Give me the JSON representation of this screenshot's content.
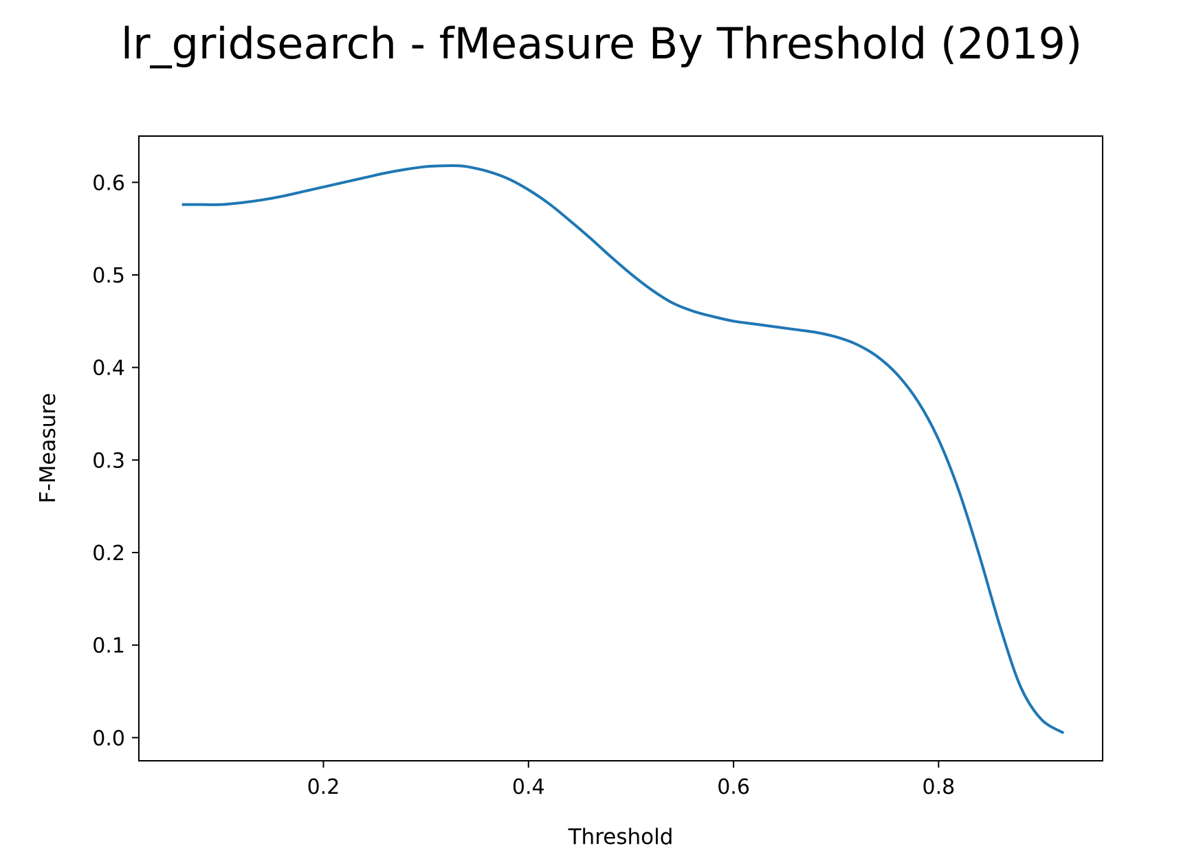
{
  "chart_data": {
    "type": "line",
    "title": "lr_gridsearch - fMeasure By Threshold (2019)",
    "xlabel": "Threshold",
    "ylabel": "F-Measure",
    "xlim": [
      0.02,
      0.96
    ],
    "ylim": [
      -0.025,
      0.65
    ],
    "xticks": [
      "0.2",
      "0.4",
      "0.6",
      "0.8"
    ],
    "yticks": [
      "0.0",
      "0.1",
      "0.2",
      "0.3",
      "0.4",
      "0.5",
      "0.6"
    ],
    "grid": false,
    "line_color": "#1f77b4",
    "series": [
      {
        "x": [
          0.062,
          0.08,
          0.1,
          0.12,
          0.14,
          0.16,
          0.18,
          0.2,
          0.22,
          0.24,
          0.26,
          0.28,
          0.3,
          0.32,
          0.33,
          0.34,
          0.36,
          0.38,
          0.4,
          0.42,
          0.44,
          0.46,
          0.48,
          0.5,
          0.52,
          0.54,
          0.56,
          0.58,
          0.6,
          0.62,
          0.64,
          0.66,
          0.68,
          0.7,
          0.72,
          0.74,
          0.76,
          0.78,
          0.8,
          0.82,
          0.84,
          0.86,
          0.88,
          0.9,
          0.922
        ],
        "values": [
          0.576,
          0.576,
          0.576,
          0.578,
          0.581,
          0.585,
          0.59,
          0.595,
          0.6,
          0.605,
          0.61,
          0.614,
          0.617,
          0.618,
          0.618,
          0.617,
          0.612,
          0.604,
          0.592,
          0.577,
          0.559,
          0.54,
          0.52,
          0.501,
          0.484,
          0.47,
          0.461,
          0.455,
          0.45,
          0.447,
          0.444,
          0.441,
          0.438,
          0.433,
          0.425,
          0.412,
          0.392,
          0.363,
          0.322,
          0.266,
          0.196,
          0.12,
          0.055,
          0.02,
          0.005
        ]
      }
    ]
  }
}
